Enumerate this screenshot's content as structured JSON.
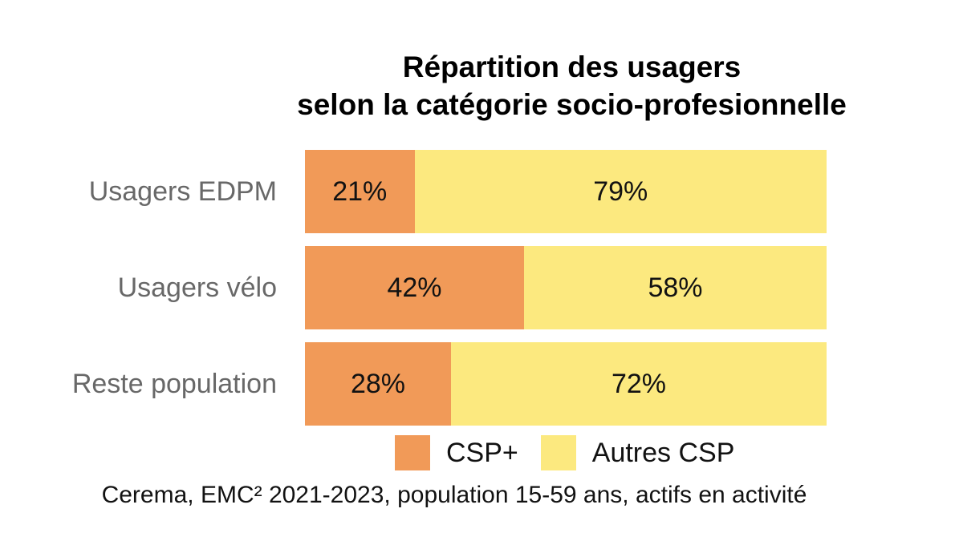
{
  "title": {
    "line1": "Répartition des usagers",
    "line2": "selon la catégorie socio-profesionnelle"
  },
  "colors": {
    "csp_plus": "#F19A58",
    "autres_csp": "#FCE97F",
    "category_label": "#686868",
    "text": "#121212",
    "background": "#FFFFFF"
  },
  "chart_data": {
    "type": "bar",
    "orientation": "horizontal",
    "stacked": true,
    "title": "Répartition des usagers selon la catégorie socio-profesionnelle",
    "categories": [
      "Usagers EDPM",
      "Usagers vélo",
      "Reste population"
    ],
    "series": [
      {
        "name": "CSP+",
        "color": "#F19A58",
        "values": [
          21,
          42,
          28
        ]
      },
      {
        "name": "Autres CSP",
        "color": "#FCE97F",
        "values": [
          79,
          58,
          72
        ]
      }
    ],
    "value_labels": [
      [
        "21%",
        "79%"
      ],
      [
        "42%",
        "58%"
      ],
      [
        "28%",
        "72%"
      ]
    ],
    "xlim": [
      0,
      100
    ],
    "value_format": "percent",
    "grid": false,
    "axes_visible": false,
    "legend_position": "bottom-center",
    "xlabel": "",
    "ylabel": ""
  },
  "legend": [
    {
      "label": "CSP+",
      "color": "#F19A58"
    },
    {
      "label": "Autres CSP",
      "color": "#FCE97F"
    }
  ],
  "footer": "Cerema, EMC² 2021-2023, population 15-59 ans, actifs en activité"
}
